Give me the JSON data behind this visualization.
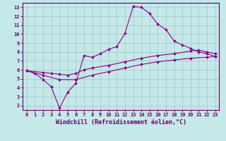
{
  "xlabel": "Windchill (Refroidissement éolien,°C)",
  "bg_color": "#c5e8e8",
  "grid_color": "#a8cccc",
  "line_color": "#880088",
  "xlim": [
    -0.5,
    23.5
  ],
  "ylim": [
    1.5,
    13.5
  ],
  "xticks": [
    0,
    1,
    2,
    3,
    4,
    5,
    6,
    7,
    8,
    9,
    10,
    11,
    12,
    13,
    14,
    15,
    16,
    17,
    18,
    19,
    20,
    21,
    22,
    23
  ],
  "yticks": [
    2,
    3,
    4,
    5,
    6,
    7,
    8,
    9,
    10,
    11,
    12,
    13
  ],
  "line1_x": [
    0,
    1,
    2,
    3,
    4,
    5,
    6,
    7,
    8,
    9,
    10,
    11,
    12,
    13,
    14,
    15,
    16,
    17,
    18,
    19,
    20,
    21,
    22,
    23
  ],
  "line1_y": [
    5.9,
    5.6,
    4.9,
    4.1,
    1.7,
    3.5,
    4.5,
    7.6,
    7.4,
    7.8,
    8.3,
    8.6,
    10.1,
    13.1,
    13.0,
    12.3,
    11.1,
    10.5,
    9.2,
    8.8,
    8.4,
    8.0,
    7.8,
    7.5
  ],
  "line2_x": [
    0,
    2,
    3,
    4,
    5,
    6,
    7,
    8,
    10,
    12,
    14,
    16,
    18,
    20,
    21,
    22,
    23
  ],
  "line2_y": [
    5.9,
    5.7,
    5.6,
    5.5,
    5.4,
    5.6,
    6.0,
    6.2,
    6.5,
    6.9,
    7.3,
    7.6,
    7.8,
    8.1,
    8.2,
    8.0,
    7.8
  ],
  "line3_x": [
    0,
    2,
    4,
    6,
    8,
    10,
    12,
    14,
    16,
    18,
    20,
    22,
    23
  ],
  "line3_y": [
    5.9,
    5.4,
    4.9,
    4.9,
    5.4,
    5.8,
    6.2,
    6.6,
    6.9,
    7.1,
    7.3,
    7.4,
    7.5
  ]
}
